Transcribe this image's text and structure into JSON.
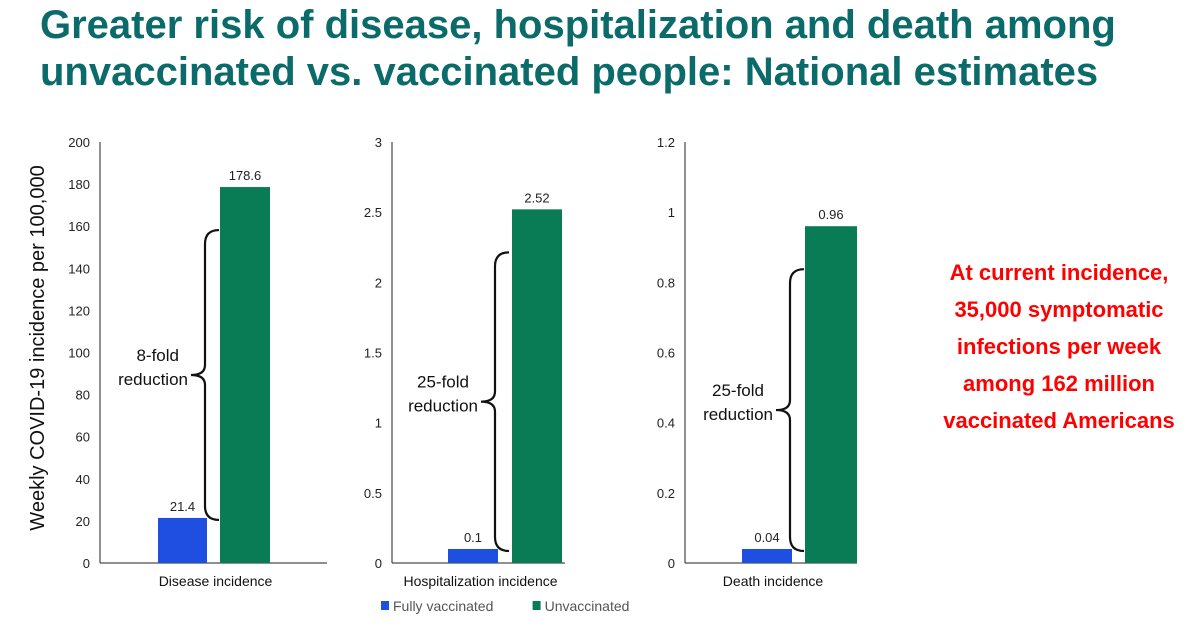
{
  "title": "Greater risk of disease, hospitalization and death among unvaccinated vs. vaccinated people: National estimates",
  "callout": "At current incidence, 35,000 symptomatic infections per week among 162 million vaccinated Americans",
  "colors": {
    "vaccinated": "#1f4fe0",
    "unvaccinated": "#0a7c55",
    "title": "#0b6b6b",
    "callout": "#ff0000"
  },
  "chart_data": [
    {
      "type": "bar",
      "category": "Disease incidence",
      "ylabel": "Weekly COVID-19 incidence per 100,000",
      "ylim": [
        0,
        200
      ],
      "ticks": [
        "0",
        "20",
        "40",
        "60",
        "80",
        "100",
        "120",
        "140",
        "160",
        "180",
        "200"
      ],
      "series": [
        {
          "name": "Fully vaccinated",
          "value": 21.4,
          "label": "21.4"
        },
        {
          "name": "Unvaccinated",
          "value": 178.6,
          "label": "178.6"
        }
      ],
      "annotation": [
        "8-fold",
        "reduction"
      ]
    },
    {
      "type": "bar",
      "category": "Hospitalization incidence",
      "ylim": [
        0,
        3
      ],
      "ticks": [
        "0",
        "0.5",
        "1",
        "1.5",
        "2",
        "2.5",
        "3"
      ],
      "series": [
        {
          "name": "Fully vaccinated",
          "value": 0.1,
          "label": "0.1"
        },
        {
          "name": "Unvaccinated",
          "value": 2.52,
          "label": "2.52"
        }
      ],
      "annotation": [
        "25-fold",
        "reduction"
      ]
    },
    {
      "type": "bar",
      "category": "Death incidence",
      "ylim": [
        0,
        1.2
      ],
      "ticks": [
        "0",
        "0.2",
        "0.4",
        "0.6",
        "0.8",
        "1",
        "1.2"
      ],
      "series": [
        {
          "name": "Fully vaccinated",
          "value": 0.04,
          "label": "0.04"
        },
        {
          "name": "Unvaccinated",
          "value": 0.96,
          "label": "0.96"
        }
      ],
      "annotation": [
        "25-fold",
        "reduction"
      ]
    }
  ],
  "legend": [
    {
      "name": "Fully vaccinated",
      "color_key": "vaccinated"
    },
    {
      "name": "Unvaccinated",
      "color_key": "unvaccinated"
    }
  ]
}
